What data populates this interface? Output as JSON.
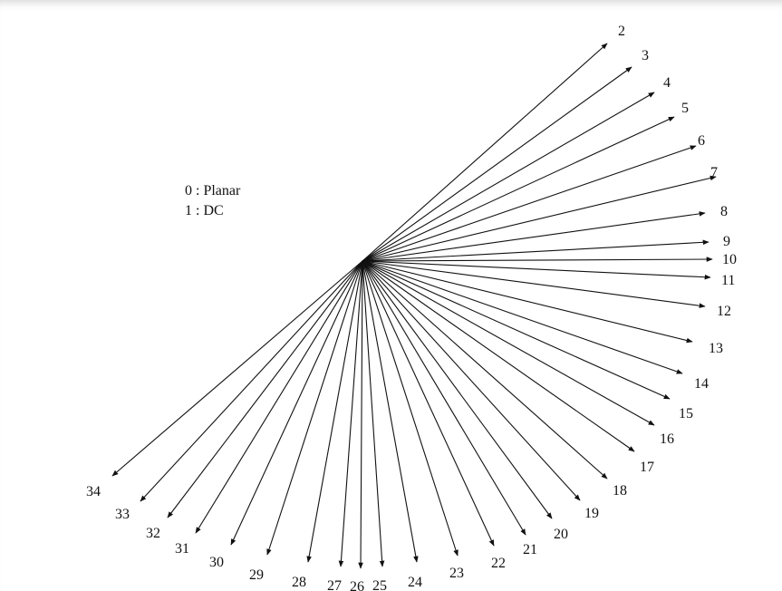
{
  "legend": {
    "line1": "0 : Planar",
    "line2": "1 : DC"
  },
  "modes": {
    "color": "#111111",
    "labels": [
      "2",
      "3",
      "4",
      "5",
      "6",
      "7",
      "8",
      "9",
      "10",
      "11",
      "12",
      "13",
      "14",
      "15",
      "16",
      "17",
      "18",
      "19",
      "20",
      "21",
      "22",
      "23",
      "24",
      "25",
      "26",
      "27",
      "28",
      "29",
      "30",
      "31",
      "32",
      "33",
      "34"
    ]
  }
}
